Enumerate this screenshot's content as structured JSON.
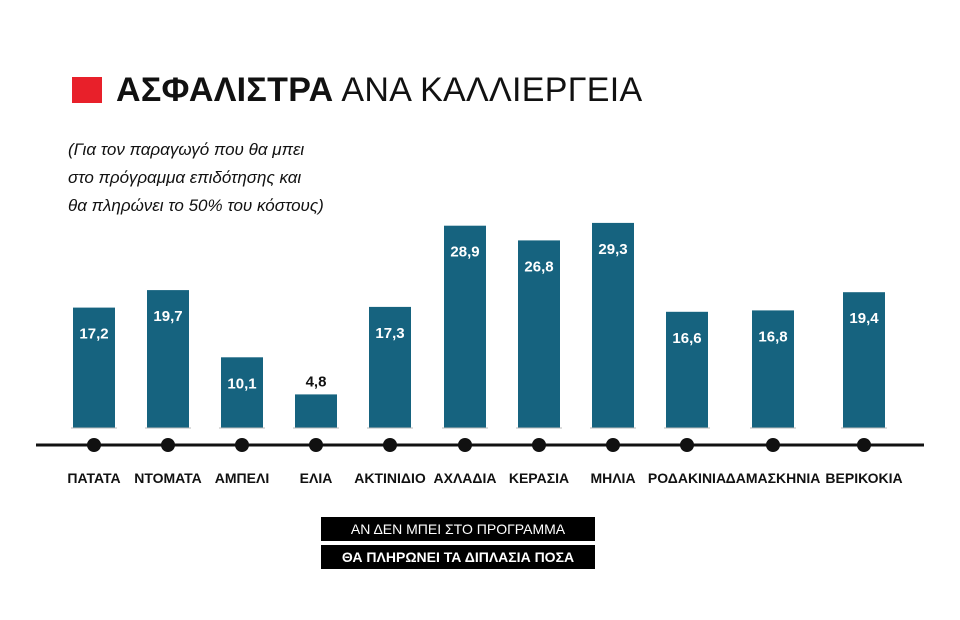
{
  "header": {
    "title_bold": "ΑΣΦΑΛΙΣΤΡΑ",
    "title_rest": "ΑΝΑ ΚΑΛΛΙΕΡΓΕΙΑ",
    "accent_color": "#e8202a"
  },
  "subtitle_lines": [
    "(Για τον παραγωγό που θα μπει",
    "στο πρόγραμμα επιδότησης και",
    "θα πληρώνει το 50% του κόστους)"
  ],
  "footer_notes": {
    "line1": "ΑΝ ΔΕΝ ΜΠΕΙ ΣΤΟ ΠΡΟΓΡΑΜΜΑ",
    "line2": "ΘΑ ΠΛΗΡΩΝΕΙ ΤΑ ΔΙΠΛΑΣΙΑ ΠΟΣΑ"
  },
  "chart_data": {
    "type": "bar",
    "categories": [
      "ΠΑΤΑΤΑ",
      "ΝΤΟΜΑΤΑ",
      "ΑΜΠΕΛΙ",
      "ΕΛΙΑ",
      "ΑΚΤΙΝΙΔΙΟ",
      "ΑΧΛΑΔΙΑ",
      "ΚΕΡΑΣΙΑ",
      "ΜΗΛΙΑ",
      "ΡΟΔΑΚΙΝΙΑ",
      "ΔΑΜΑΣΚΗΝΙΑ",
      "ΒΕΡΙΚΟΚΙΑ"
    ],
    "values": [
      17.2,
      19.7,
      10.1,
      4.8,
      17.3,
      28.9,
      26.8,
      29.3,
      16.6,
      16.8,
      19.4
    ],
    "value_labels": [
      "17,2",
      "19,7",
      "10,1",
      "4,8",
      "17,3",
      "28,9",
      "26,8",
      "29,3",
      "16,6",
      "16,8",
      "19,4"
    ],
    "ylim": [
      0,
      30
    ],
    "grid": false,
    "legend": "none",
    "bar_color": "#16637f",
    "label_inside_color": "#ffffff",
    "label_outside_color": "#111111"
  }
}
